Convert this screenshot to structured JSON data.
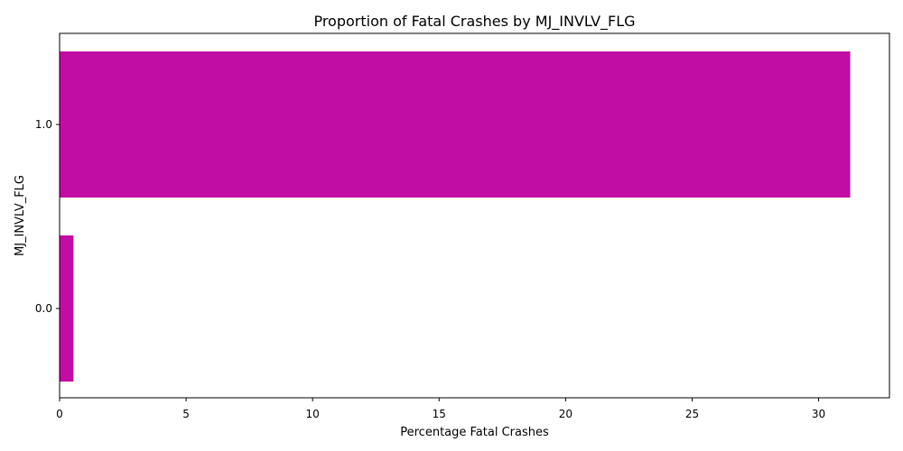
{
  "chart_data": {
    "type": "bar",
    "orientation": "horizontal",
    "title": "Proportion of Fatal Crashes by MJ_INVLV_FLG",
    "xlabel": "Percentage Fatal Crashes",
    "ylabel": "MJ_INVLV_FLG",
    "categories": [
      "0.0",
      "1.0"
    ],
    "values": [
      0.55,
      31.25
    ],
    "xlim": [
      0,
      32.8
    ],
    "xticks": [
      0,
      5,
      10,
      15,
      20,
      25,
      30
    ],
    "bar_color": "#c20da4",
    "grid": false,
    "legend": "none"
  }
}
